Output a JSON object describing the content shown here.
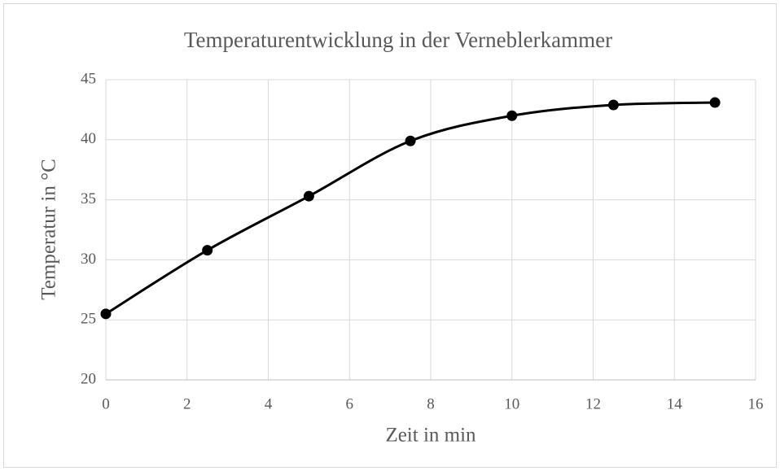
{
  "chart_data": {
    "type": "scatter",
    "title": "Temperaturentwicklung in der Verneblerkammer",
    "x_label": "Zeit in min",
    "y_label": "Temperatur in °C",
    "x": [
      0,
      2.5,
      5,
      7.5,
      10,
      12.5,
      15
    ],
    "values": [
      25.5,
      30.8,
      35.3,
      39.9,
      42.0,
      42.9,
      43.1
    ],
    "color": "#000000",
    "smooth": true,
    "xlim": [
      0,
      16
    ],
    "xticks": [
      0,
      2,
      4,
      6,
      8,
      10,
      12,
      14,
      16
    ],
    "ylim": [
      20,
      45
    ],
    "yticks": [
      20,
      25,
      30,
      35,
      40,
      45
    ],
    "grid": true
  }
}
